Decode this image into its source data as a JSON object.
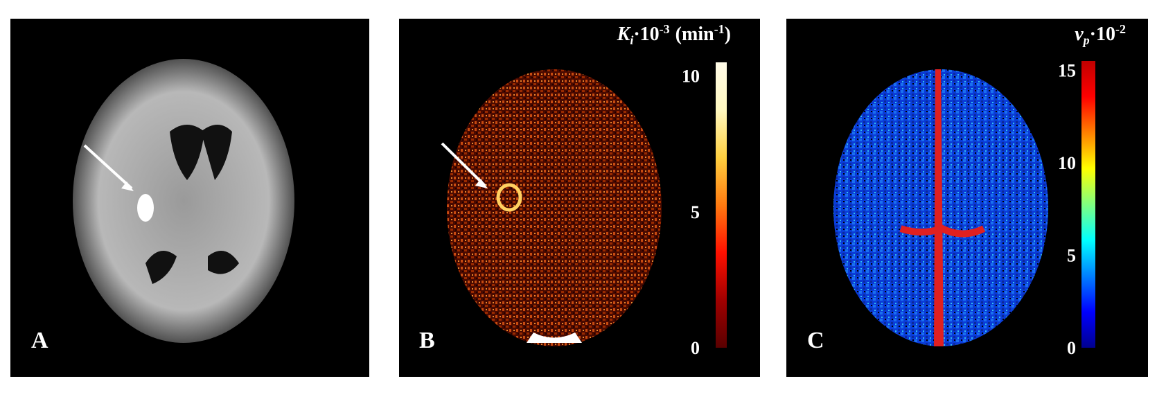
{
  "panels": [
    {
      "label": "A"
    },
    {
      "label": "B",
      "colorbar": {
        "title": {
          "symbol": "K",
          "subscript": "i",
          "factor": "·10",
          "factor_exponent": "-3",
          "unit": "(min",
          "unit_exponent": "-1",
          "close": ")"
        },
        "range": [
          0,
          10.5
        ],
        "ticks": [
          0,
          5,
          10
        ],
        "colors": [
          "#5a0000",
          "#a00000",
          "#ff1000",
          "#ff7a10",
          "#ffd040",
          "#fff8c0",
          "#fffbe8"
        ]
      }
    },
    {
      "label": "C",
      "colorbar": {
        "title": {
          "symbol": "v",
          "subscript": "p",
          "factor": "·10",
          "factor_exponent": "-2"
        },
        "range": [
          0,
          15.5
        ],
        "ticks": [
          0,
          5,
          10,
          15
        ],
        "colors": [
          "#00008f",
          "#0000ff",
          "#0080ff",
          "#00ffff",
          "#80ff80",
          "#ffff00",
          "#ff8000",
          "#ff0000",
          "#c00000"
        ]
      }
    }
  ]
}
